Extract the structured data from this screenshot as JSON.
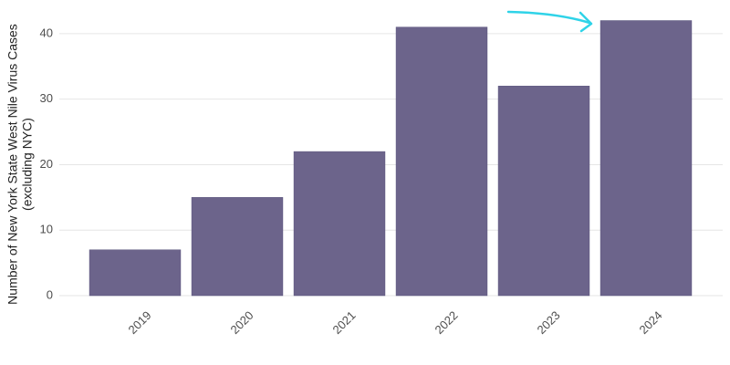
{
  "chart_data": {
    "type": "bar",
    "ylabel": [
      "Number of New York State West Nile Virus Cases",
      "(excluding NYC)"
    ],
    "categories": [
      "2019",
      "2020",
      "2021",
      "2022",
      "2023",
      "2024"
    ],
    "values": [
      7,
      15,
      22,
      41,
      32,
      42
    ],
    "color": "#6c648b",
    "ylim": [
      0,
      45
    ],
    "yticks": [
      0,
      10,
      20,
      30,
      40
    ],
    "grid": true
  }
}
